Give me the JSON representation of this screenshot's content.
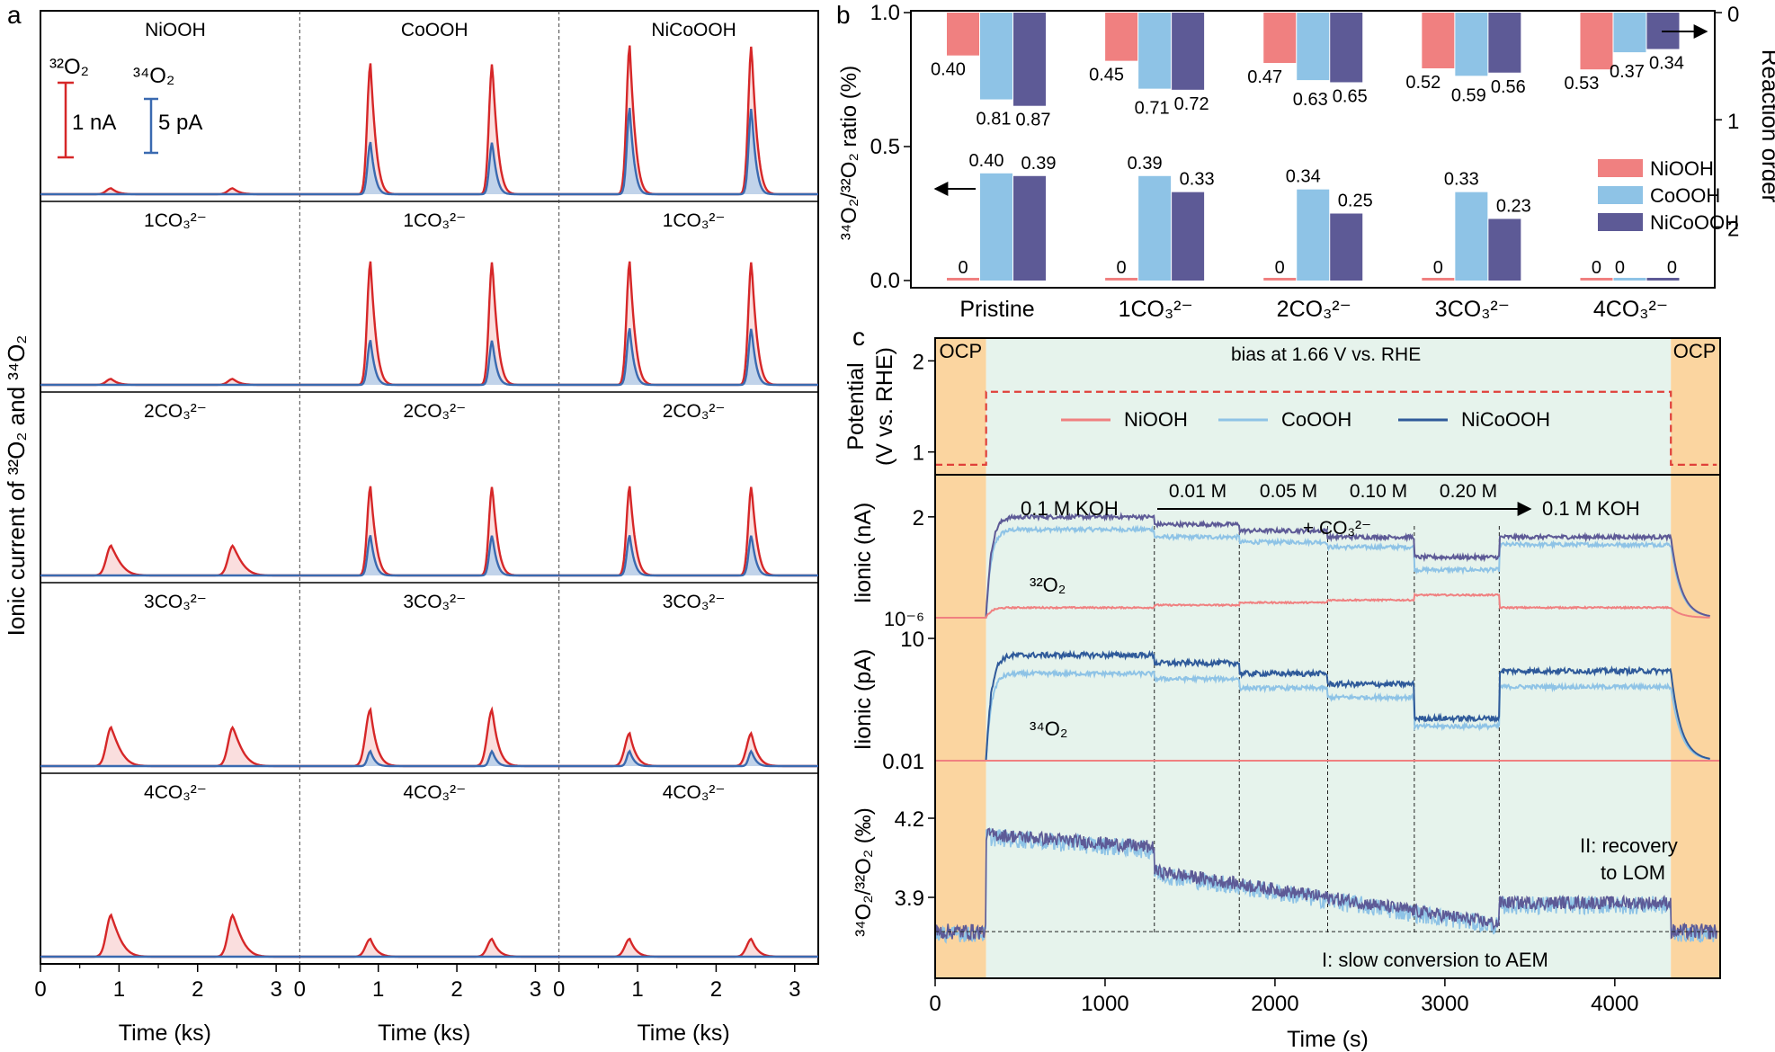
{
  "panel_labels": {
    "a": "a",
    "b": "b",
    "c": "c"
  },
  "colors": {
    "niooh": "#f08080",
    "coooh": "#8ec3e6",
    "nicoooh": "#5d5a96",
    "nicoooh_c": "#2f5a9a",
    "o32": "#d62728",
    "o34": "#3a6ab0",
    "ocp_fill": "#fbd5a0",
    "bias_fill": "#e6f3ec",
    "potential": "#e0403a"
  },
  "chart_data": [
    {
      "id": "a",
      "type": "line",
      "ylabel": "Ionic current of ³²O₂ and ³⁴O₂",
      "xlabel": "Time (ks)",
      "xlim": [
        0,
        3.3
      ],
      "xticks": [
        0,
        1,
        2,
        3
      ],
      "columns": [
        "NiOOH",
        "CoOOH",
        "NiCoOOH"
      ],
      "rows": [
        "Pristine",
        "1CO₃²⁻",
        "2CO₃²⁻",
        "3CO₃²⁻",
        "4CO₃²⁻"
      ],
      "row_labels": [
        [
          "NiOOH",
          "CoOOH",
          "NiCoOOH"
        ],
        [
          "1CO₃²⁻",
          "1CO₃²⁻",
          "1CO₃²⁻"
        ],
        [
          "2CO₃²⁻",
          "2CO₃²⁻",
          "2CO₃²⁻"
        ],
        [
          "3CO₃²⁻",
          "3CO₃²⁻",
          "3CO₃²⁻"
        ],
        [
          "4CO₃²⁻",
          "4CO₃²⁻",
          "4CO₃²⁻"
        ]
      ],
      "peak_times_ks": [
        0.9,
        2.45
      ],
      "peak_32O2_relative": [
        [
          0.04,
          0.88,
          1.0
        ],
        [
          0.04,
          0.83,
          0.83
        ],
        [
          0.2,
          0.6,
          0.6
        ],
        [
          0.26,
          0.38,
          0.22
        ],
        [
          0.28,
          0.12,
          0.12
        ]
      ],
      "peak_34O2_relative": [
        [
          0,
          0.35,
          0.58
        ],
        [
          0,
          0.3,
          0.38
        ],
        [
          0,
          0.27,
          0.27
        ],
        [
          0,
          0.1,
          0.1
        ],
        [
          0,
          0,
          0
        ]
      ],
      "scale_bars": {
        "o32_label": "³²O₂",
        "o34_label": "³⁴O₂",
        "o32_scale": "1 nA",
        "o34_scale": "5 pA"
      }
    },
    {
      "id": "b",
      "type": "bar",
      "categories": [
        "Pristine",
        "1CO₃²⁻",
        "2CO₃²⁻",
        "3CO₃²⁻",
        "4CO₃²⁻"
      ],
      "series_names": [
        "NiOOH",
        "CoOOH",
        "NiCoOOH"
      ],
      "ratio_values": [
        [
          0,
          0.4,
          0.39
        ],
        [
          0,
          0.39,
          0.33
        ],
        [
          0,
          0.34,
          0.25
        ],
        [
          0,
          0.33,
          0.23
        ],
        [
          0,
          0,
          0
        ]
      ],
      "ratio_labels": [
        [
          "0",
          "0.40",
          "0.39"
        ],
        [
          "0",
          "0.39",
          "0.33"
        ],
        [
          "0",
          "0.34",
          "0.25"
        ],
        [
          "0",
          "0.33",
          "0.23"
        ],
        [
          "0",
          "0",
          "0"
        ]
      ],
      "order_values": [
        [
          0.4,
          0.81,
          0.87
        ],
        [
          0.45,
          0.71,
          0.72
        ],
        [
          0.47,
          0.63,
          0.65
        ],
        [
          0.52,
          0.59,
          0.56
        ],
        [
          0.53,
          0.37,
          0.34
        ]
      ],
      "order_labels": [
        [
          "0.40",
          "0.81",
          "0.87"
        ],
        [
          "0.45",
          "0.71",
          "0.72"
        ],
        [
          "0.47",
          "0.63",
          "0.65"
        ],
        [
          "0.52",
          "0.59",
          "0.56"
        ],
        [
          "0.53",
          "0.37",
          "0.34"
        ]
      ],
      "ylabel_left": "³⁴O₂/³²O₂ ratio (%)",
      "ylabel_right": "Reaction order",
      "ylim_left": [
        0,
        1.0
      ],
      "yticks_left": [
        "0.0",
        "0.5",
        "1.0"
      ],
      "ylim_right": [
        2.5,
        0
      ],
      "yticks_right": [
        "0",
        "1",
        "2"
      ],
      "legend": [
        "NiOOH",
        "CoOOH",
        "NiCoOOH"
      ]
    },
    {
      "id": "c",
      "type": "line",
      "xlabel": "Time (s)",
      "xlim": [
        0,
        4620
      ],
      "xticks": [
        0,
        1000,
        2000,
        3000,
        4000
      ],
      "ocp_end": 300,
      "bias_end": 4330,
      "dividers": [
        1290,
        1790,
        2310,
        2820,
        3320
      ],
      "sub_potential": {
        "ylabel": "Potential\n(V vs. RHE)",
        "yticks": [
          1,
          2
        ],
        "ylim": [
          0.75,
          2.25
        ],
        "ocp_value": 0.86,
        "bias_value": 1.66,
        "ocp_label": "OCP",
        "bias_label": "bias at 1.66 V vs. RHE"
      },
      "legend": [
        "NiOOH",
        "CoOOH",
        "NiCoOOH"
      ],
      "sub_32": {
        "ylabel": "Iionic (nA)",
        "ytick_labels": [
          "2",
          "10⁻⁶"
        ],
        "label": "³²O₂",
        "levels_nicoooh": [
          2.0,
          1.85,
          1.6,
          1.2,
          1.6
        ],
        "levels_coooh": [
          1.75,
          1.6,
          1.4,
          0.95,
          1.45
        ],
        "levels_niooh": [
          0.2,
          0.25,
          0.35,
          0.45,
          0.2
        ]
      },
      "sub_34": {
        "ylabel": "Iionic (pA)",
        "ytick_labels": [
          "10",
          "0.01"
        ],
        "label": "³⁴O₂"
      },
      "sub_ratio": {
        "ylabel": "³⁴O₂/³²O₂ (‰)",
        "yticks": [
          "4.2",
          "3.9"
        ],
        "baseline": 3.77,
        "annotation_top": "II: recovery",
        "annotation_bottom": "to LOM",
        "annotation_slow": "I: slow conversion to AEM"
      },
      "concentration_annotation": {
        "left": "0.1 M KOH",
        "right": "0.1 M KOH",
        "steps": [
          "0.01 M",
          "0.05 M",
          "0.10 M",
          "0.20 M"
        ],
        "carbonate": "+ CO₃²⁻"
      }
    }
  ]
}
